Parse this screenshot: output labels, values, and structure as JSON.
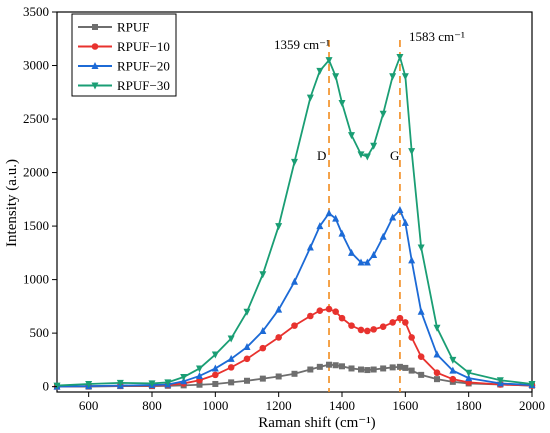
{
  "chart_data": {
    "type": "line",
    "title": "",
    "xlabel": "Raman shift (cm⁻¹)",
    "ylabel": "Intensity (a.u.)",
    "xlim": [
      500,
      2000
    ],
    "ylim": [
      -50,
      3500
    ],
    "xticks": [
      600,
      800,
      1000,
      1200,
      1400,
      1600,
      1800,
      2000
    ],
    "yticks": [
      0,
      500,
      1000,
      1500,
      2000,
      2500,
      3000,
      3500
    ],
    "grid": false,
    "legend_position": "top-left",
    "x": [
      500,
      600,
      700,
      800,
      850,
      900,
      950,
      1000,
      1050,
      1100,
      1150,
      1200,
      1250,
      1300,
      1330,
      1359,
      1380,
      1400,
      1430,
      1460,
      1480,
      1500,
      1530,
      1560,
      1583,
      1600,
      1620,
      1650,
      1700,
      1750,
      1800,
      1900,
      2000
    ],
    "series": [
      {
        "name": "RPUF",
        "color": "#6e6e6e",
        "marker": "square",
        "values": [
          0,
          0,
          5,
          5,
          8,
          12,
          18,
          25,
          40,
          55,
          75,
          95,
          120,
          160,
          185,
          205,
          200,
          190,
          170,
          160,
          155,
          160,
          170,
          180,
          185,
          175,
          150,
          110,
          70,
          45,
          30,
          20,
          10
        ]
      },
      {
        "name": "RPUF−10",
        "color": "#e8322e",
        "marker": "circle",
        "values": [
          0,
          5,
          8,
          10,
          15,
          30,
          60,
          110,
          180,
          260,
          360,
          460,
          570,
          660,
          710,
          725,
          700,
          640,
          570,
          530,
          520,
          535,
          560,
          600,
          640,
          600,
          460,
          280,
          130,
          70,
          40,
          20,
          10
        ]
      },
      {
        "name": "RPUF−20",
        "color": "#1c6ad6",
        "marker": "triangle-up",
        "values": [
          0,
          5,
          10,
          15,
          20,
          50,
          100,
          170,
          260,
          370,
          520,
          720,
          980,
          1300,
          1500,
          1620,
          1570,
          1430,
          1250,
          1160,
          1160,
          1230,
          1400,
          1580,
          1650,
          1530,
          1180,
          700,
          300,
          150,
          80,
          30,
          15
        ]
      },
      {
        "name": "RPUF−30",
        "color": "#1a9e74",
        "marker": "triangle-down",
        "values": [
          10,
          25,
          35,
          30,
          40,
          90,
          170,
          300,
          450,
          700,
          1050,
          1500,
          2100,
          2700,
          2950,
          3050,
          2900,
          2650,
          2350,
          2170,
          2150,
          2250,
          2550,
          2900,
          3080,
          2900,
          2200,
          1300,
          550,
          250,
          130,
          60,
          25
        ]
      }
    ],
    "annotations": [
      {
        "text": "1359 cm⁻¹",
        "x": 1359
      },
      {
        "text": "1583 cm⁻¹",
        "x": 1583
      },
      {
        "text": "D",
        "x": 1359
      },
      {
        "text": "G",
        "x": 1583
      }
    ],
    "reference_lines": [
      {
        "x": 1359,
        "color": "#f28c1e",
        "style": "dashed"
      },
      {
        "x": 1583,
        "color": "#f28c1e",
        "style": "dashed"
      }
    ]
  }
}
